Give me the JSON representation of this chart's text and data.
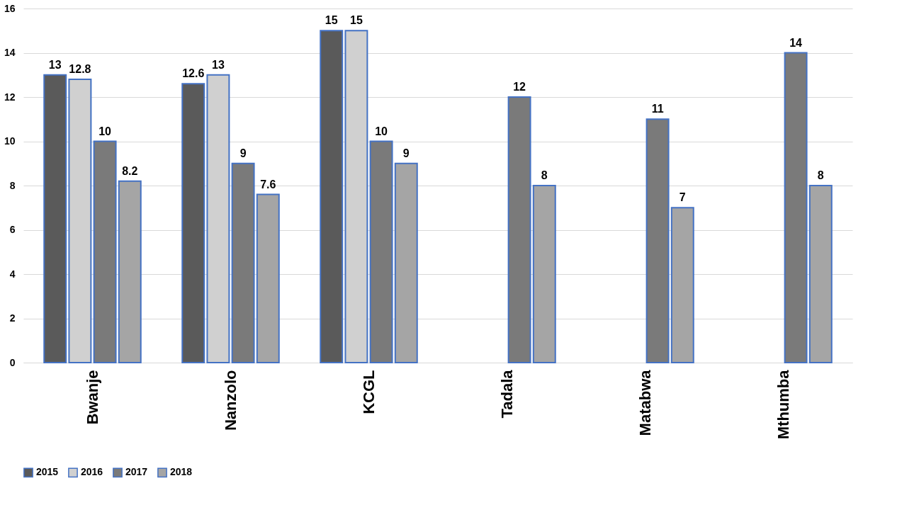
{
  "chart_data": {
    "type": "bar",
    "categories": [
      "Bwanje",
      "Nanzolo",
      "KCGL",
      "Tadala",
      "Matabwa",
      "Mthumba"
    ],
    "series": [
      {
        "name": "2015",
        "color": "#5a5a5a",
        "values": [
          13,
          12.6,
          15,
          null,
          null,
          null
        ]
      },
      {
        "name": "2016",
        "color": "#d0d0d0",
        "values": [
          12.8,
          13,
          15,
          null,
          null,
          null
        ]
      },
      {
        "name": "2017",
        "color": "#7a7a7a",
        "values": [
          10,
          9,
          10,
          12,
          11,
          14
        ]
      },
      {
        "name": "2018",
        "color": "#a5a5a5",
        "values": [
          8.2,
          7.6,
          9,
          8,
          7,
          8
        ]
      }
    ],
    "ylim": [
      0,
      16
    ],
    "yticks": [
      0,
      2,
      4,
      6,
      8,
      10,
      12,
      14,
      16
    ],
    "grid": "y",
    "legend": "bottom",
    "data_labels": true
  }
}
